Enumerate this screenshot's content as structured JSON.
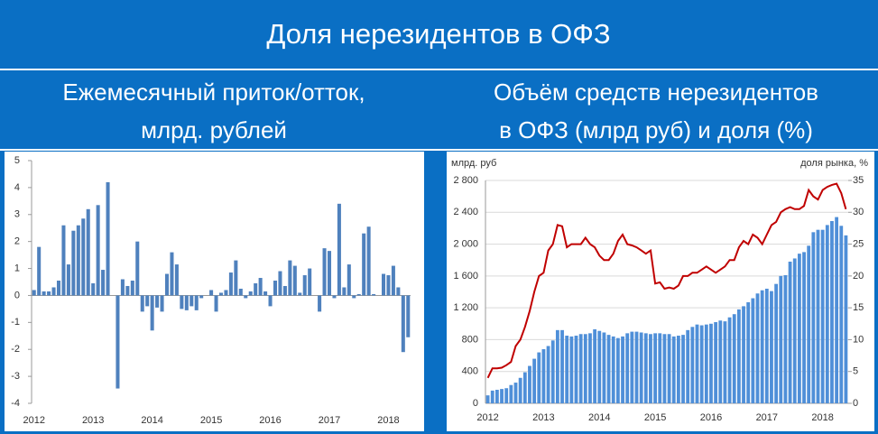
{
  "title": "Доля нерезидентов в ОФЗ",
  "chart_data": [
    {
      "type": "bar",
      "title": [
        "Ежемесячный приток/отток,",
        "млрд. рублей"
      ],
      "categories": [
        "2012",
        null,
        null,
        null,
        null,
        null,
        null,
        null,
        null,
        null,
        null,
        null,
        "2013",
        null,
        null,
        null,
        null,
        null,
        null,
        null,
        null,
        null,
        null,
        null,
        "2014",
        null,
        null,
        null,
        null,
        null,
        null,
        null,
        null,
        null,
        null,
        null,
        "2015",
        null,
        null,
        null,
        null,
        null,
        null,
        null,
        null,
        null,
        null,
        null,
        "2016",
        null,
        null,
        null,
        null,
        null,
        null,
        null,
        null,
        null,
        null,
        null,
        "2017",
        null,
        null,
        null,
        null,
        null,
        null,
        null,
        null,
        null,
        null,
        null,
        "2018",
        null,
        null,
        null,
        null
      ],
      "values": [
        0.2,
        1.8,
        0.15,
        0.15,
        0.3,
        0.55,
        2.6,
        1.15,
        2.4,
        2.6,
        2.85,
        3.2,
        0.45,
        3.35,
        0.95,
        4.2,
        0,
        -3.45,
        0.6,
        0.35,
        0.55,
        2.0,
        -0.6,
        -0.4,
        -1.3,
        -0.45,
        -0.6,
        0.8,
        1.6,
        1.15,
        -0.5,
        -0.55,
        -0.4,
        -0.55,
        -0.1,
        0,
        0.2,
        -0.6,
        0.1,
        0.2,
        0.85,
        1.3,
        0.25,
        -0.1,
        0.15,
        0.45,
        0.65,
        0.15,
        -0.4,
        0.55,
        0.9,
        0.35,
        1.3,
        1.1,
        0.1,
        0.75,
        1.0,
        0,
        -0.6,
        1.75,
        1.65,
        -0.1,
        3.4,
        0.3,
        1.15,
        -0.1,
        0.05,
        2.3,
        2.55,
        0.05,
        0,
        0.8,
        0.75,
        1.1,
        0.3,
        -2.1,
        -1.55
      ],
      "color": "#4f81bd",
      "ylim": [
        -4,
        5
      ],
      "yticks": [
        -4,
        -3,
        -2,
        -1,
        0,
        1,
        2,
        3,
        4,
        5
      ],
      "grid": false
    },
    {
      "type": "combo",
      "title": [
        "Объём средств нерезидентов",
        "в ОФЗ (млрд руб) и доля (%)"
      ],
      "ylabel": "млрд. руб",
      "y2label": "доля рынка, %",
      "categories": [
        "2012",
        null,
        null,
        null,
        null,
        null,
        null,
        null,
        null,
        null,
        null,
        null,
        "2013",
        null,
        null,
        null,
        null,
        null,
        null,
        null,
        null,
        null,
        null,
        null,
        "2014",
        null,
        null,
        null,
        null,
        null,
        null,
        null,
        null,
        null,
        null,
        null,
        "2015",
        null,
        null,
        null,
        null,
        null,
        null,
        null,
        null,
        null,
        null,
        null,
        "2016",
        null,
        null,
        null,
        null,
        null,
        null,
        null,
        null,
        null,
        null,
        null,
        "2017",
        null,
        null,
        null,
        null,
        null,
        null,
        null,
        null,
        null,
        null,
        null,
        "2018",
        null,
        null,
        null,
        null,
        null
      ],
      "series": [
        {
          "type": "bar",
          "color": "#4f8fd8",
          "values": [
            100,
            160,
            170,
            180,
            190,
            230,
            260,
            320,
            390,
            470,
            560,
            640,
            680,
            720,
            790,
            920,
            920,
            850,
            840,
            850,
            870,
            870,
            880,
            930,
            910,
            890,
            860,
            840,
            820,
            840,
            880,
            900,
            900,
            890,
            880,
            870,
            880,
            880,
            870,
            870,
            840,
            850,
            860,
            920,
            960,
            990,
            980,
            990,
            1000,
            1020,
            1040,
            1030,
            1080,
            1120,
            1180,
            1220,
            1270,
            1320,
            1380,
            1420,
            1440,
            1410,
            1500,
            1600,
            1610,
            1780,
            1820,
            1880,
            1900,
            1980,
            2150,
            2180,
            2180,
            2240,
            2290,
            2340,
            2230,
            2110
          ]
        },
        {
          "type": "line",
          "color": "#c00000",
          "axis": "y2",
          "values": [
            4,
            5.5,
            5.5,
            5.6,
            6,
            6.5,
            9,
            10,
            12,
            14.5,
            17.5,
            20,
            20.5,
            24,
            25,
            28,
            27.8,
            24.5,
            25,
            25,
            25,
            26,
            25,
            24.5,
            23.2,
            22.5,
            22.5,
            23.5,
            25.5,
            26.5,
            25,
            24.8,
            24.5,
            24,
            23.5,
            24,
            18.8,
            19,
            18,
            18.2,
            18,
            18.5,
            20,
            20,
            20.5,
            20.5,
            21,
            21.5,
            21,
            20.5,
            21,
            21.5,
            22.5,
            22.5,
            24.5,
            25.5,
            25,
            26.5,
            26,
            25,
            26.5,
            28,
            28.5,
            30,
            30.5,
            30.8,
            30.5,
            30.5,
            31,
            33.5,
            32.5,
            32,
            33.5,
            34,
            34.3,
            34.5,
            33,
            30.5
          ]
        }
      ],
      "ylim": [
        0,
        2800
      ],
      "yticks": [
        0,
        400,
        800,
        {
          "value": 1200,
          "label": "1 200"
        },
        {
          "value": 1600,
          "label": "1 600"
        },
        {
          "value": 2000,
          "label": "2 000"
        },
        {
          "value": 2400,
          "label": "2 400"
        },
        {
          "value": 2800,
          "label": "2 800"
        }
      ],
      "y2lim": [
        0,
        35
      ],
      "y2ticks": [
        0,
        5,
        10,
        15,
        20,
        25,
        30,
        35
      ],
      "grid": true
    }
  ]
}
